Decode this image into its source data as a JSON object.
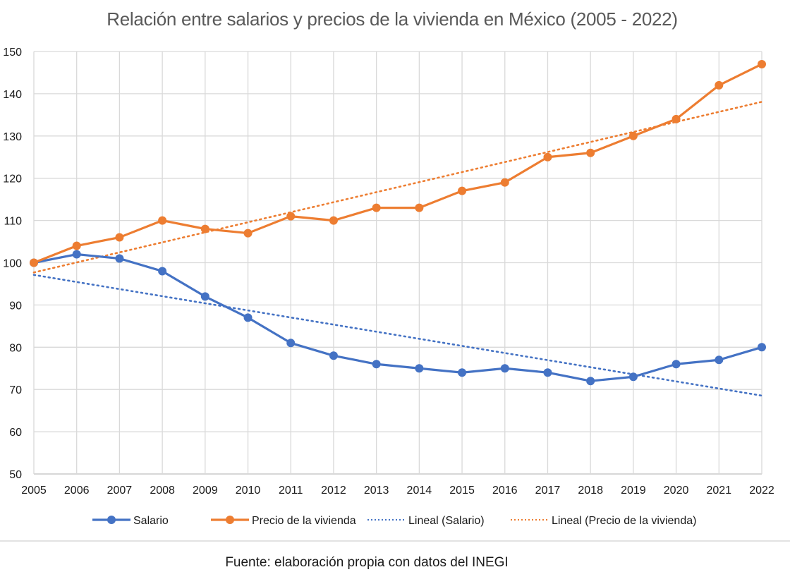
{
  "chart_data": {
    "type": "line",
    "title": "Relación entre salarios y precios de la vivienda en México (2005 - 2022)",
    "xlabel": "",
    "ylabel": "",
    "ylim": [
      50,
      150
    ],
    "yticks": [
      50,
      60,
      70,
      80,
      90,
      100,
      110,
      120,
      130,
      140,
      150
    ],
    "grid": true,
    "legend_position": "bottom",
    "x": [
      "2005",
      "2006",
      "2007",
      "2008",
      "2009",
      "2010",
      "2011",
      "2012",
      "2013",
      "2014",
      "2015",
      "2016",
      "2017",
      "2018",
      "2019",
      "2020",
      "2021",
      "2022"
    ],
    "series": [
      {
        "name": "Salario",
        "color": "#4472c4",
        "style": "solid-markers",
        "values": [
          100,
          102,
          101,
          98,
          92,
          87,
          81,
          78,
          76,
          75,
          74,
          75,
          74,
          72,
          73,
          76,
          77,
          80
        ]
      },
      {
        "name": "Precio de la vivienda",
        "color": "#ed7d31",
        "style": "solid-markers",
        "values": [
          100,
          104,
          106,
          110,
          108,
          107,
          111,
          110,
          113,
          113,
          117,
          119,
          125,
          126,
          130,
          134,
          142,
          147
        ]
      }
    ],
    "trendlines": [
      {
        "name": "Lineal (Salario)",
        "color": "#4472c4",
        "style": "dotted",
        "of": "Salario",
        "type": "linear"
      },
      {
        "name": "Lineal (Precio de la vivienda)",
        "color": "#ed7d31",
        "style": "dotted",
        "of": "Precio de la vivienda",
        "type": "linear"
      }
    ]
  },
  "source": "Fuente: elaboración propia con datos del INEGI"
}
